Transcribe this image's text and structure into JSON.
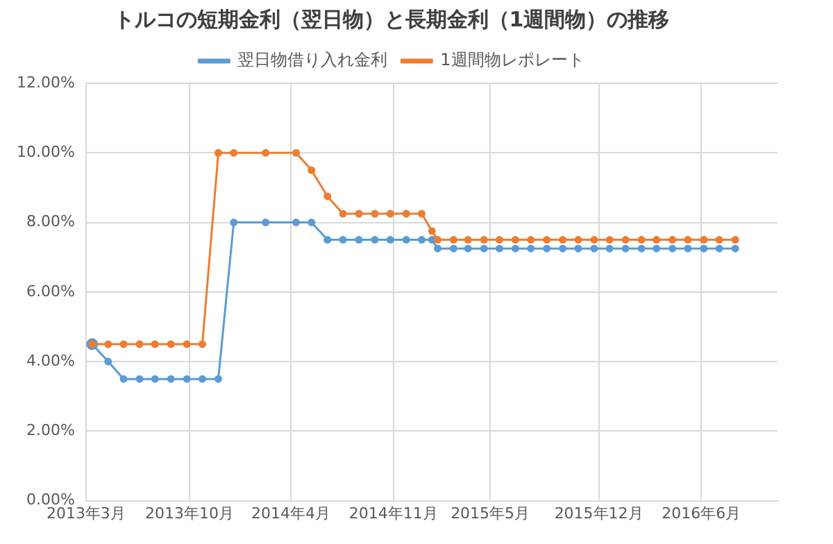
{
  "chart_data": {
    "type": "line",
    "title": "トルコの短期金利（翌日物）と長期金利（1週間物）の推移",
    "series": [
      {
        "name": "翌日物借り入れ金利",
        "color": "#5b9bd5",
        "x": [
          "2013-03-15",
          "2013-04-15",
          "2013-05-15",
          "2013-06-15",
          "2013-07-15",
          "2013-08-15",
          "2013-09-15",
          "2013-10-15",
          "2013-11-15",
          "2013-12-15",
          "2014-02-15",
          "2014-04-15",
          "2014-05-15",
          "2014-06-15",
          "2014-07-15",
          "2014-08-15",
          "2014-09-15",
          "2014-10-15",
          "2014-11-15",
          "2014-12-15",
          "2015-01-04",
          "2015-01-15",
          "2015-02-15",
          "2015-03-15",
          "2015-04-15",
          "2015-05-15",
          "2015-06-15",
          "2015-07-15",
          "2015-08-15",
          "2015-09-15",
          "2015-10-15",
          "2015-11-15",
          "2015-12-15",
          "2016-01-15",
          "2016-02-15",
          "2016-03-15",
          "2016-04-15",
          "2016-05-15",
          "2016-06-15",
          "2016-07-15",
          "2016-08-15"
        ],
        "values": [
          4.5,
          4.0,
          3.5,
          3.5,
          3.5,
          3.5,
          3.5,
          3.5,
          3.5,
          8.0,
          8.0,
          8.0,
          8.0,
          7.5,
          7.5,
          7.5,
          7.5,
          7.5,
          7.5,
          7.5,
          7.5,
          7.25,
          7.25,
          7.25,
          7.25,
          7.25,
          7.25,
          7.25,
          7.25,
          7.25,
          7.25,
          7.25,
          7.25,
          7.25,
          7.25,
          7.25,
          7.25,
          7.25,
          7.25,
          7.25,
          7.25
        ]
      },
      {
        "name": "1週間物レポレート",
        "color": "#ed7d31",
        "x": [
          "2013-03-15",
          "2013-04-15",
          "2013-05-15",
          "2013-06-15",
          "2013-07-15",
          "2013-08-15",
          "2013-09-15",
          "2013-10-15",
          "2013-11-15",
          "2013-12-15",
          "2014-02-15",
          "2014-04-15",
          "2014-05-15",
          "2014-06-15",
          "2014-07-15",
          "2014-08-15",
          "2014-09-15",
          "2014-10-15",
          "2014-11-15",
          "2014-12-15",
          "2015-01-04",
          "2015-01-15",
          "2015-02-15",
          "2015-03-15",
          "2015-04-15",
          "2015-05-15",
          "2015-06-15",
          "2015-07-15",
          "2015-08-15",
          "2015-09-15",
          "2015-10-15",
          "2015-11-15",
          "2015-12-15",
          "2016-01-15",
          "2016-02-15",
          "2016-03-15",
          "2016-04-15",
          "2016-05-15",
          "2016-06-15",
          "2016-07-15",
          "2016-08-15"
        ],
        "values": [
          4.5,
          4.5,
          4.5,
          4.5,
          4.5,
          4.5,
          4.5,
          4.5,
          10.0,
          10.0,
          10.0,
          10.0,
          9.5,
          8.75,
          8.25,
          8.25,
          8.25,
          8.25,
          8.25,
          8.25,
          7.75,
          7.5,
          7.5,
          7.5,
          7.5,
          7.5,
          7.5,
          7.5,
          7.5,
          7.5,
          7.5,
          7.5,
          7.5,
          7.5,
          7.5,
          7.5,
          7.5,
          7.5,
          7.5,
          7.5,
          7.5
        ]
      }
    ],
    "xlim": [
      "2013-03-03",
      "2016-11-05"
    ],
    "xticks": [
      {
        "value": "2013-03-03",
        "label": "2013年3月"
      },
      {
        "value": "2013-09-20",
        "label": "2013年10月"
      },
      {
        "value": "2014-04-05",
        "label": "2014年4月"
      },
      {
        "value": "2014-10-21",
        "label": "2014年11月"
      },
      {
        "value": "2015-04-27",
        "label": "2015年5月"
      },
      {
        "value": "2015-11-24",
        "label": "2015年12月"
      },
      {
        "value": "2016-06-10",
        "label": "2016年6月"
      }
    ],
    "ylim": [
      0,
      12
    ],
    "yticks": [
      {
        "value": 0,
        "label": "0.00%"
      },
      {
        "value": 2,
        "label": "2.00%"
      },
      {
        "value": 4,
        "label": "4.00%"
      },
      {
        "value": 6,
        "label": "6.00%"
      },
      {
        "value": 8,
        "label": "8.00%"
      },
      {
        "value": 10,
        "label": "10.00%"
      },
      {
        "value": 12,
        "label": "12.00%"
      }
    ],
    "grid": true,
    "legend": "top",
    "marker": "circle",
    "line_style": "solid"
  }
}
